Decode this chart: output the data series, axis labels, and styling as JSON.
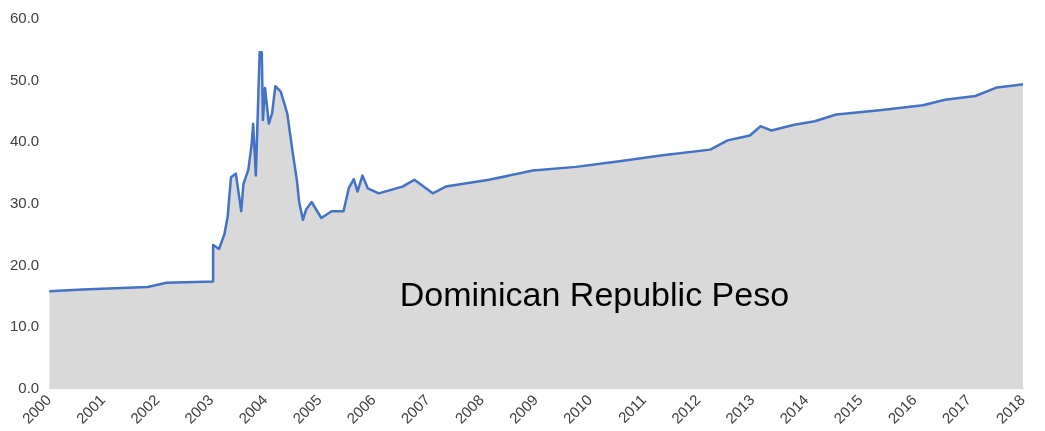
{
  "chart_data": {
    "type": "area",
    "title": "Dominican Republic Peso",
    "x": [
      2000,
      2000.62,
      2001.82,
      2002.17,
      2003.03,
      2003.03,
      2003.14,
      2003.24,
      2003.3,
      2003.36,
      2003.45,
      2003.55,
      2003.59,
      2003.68,
      2003.74,
      2003.77,
      2003.82,
      2003.89,
      2003.93,
      2003.95,
      2003.99,
      2004.06,
      2004.12,
      2004.18,
      2004.28,
      2004.4,
      2004.5,
      2004.58,
      2004.62,
      2004.69,
      2004.75,
      2004.85,
      2005.03,
      2005.22,
      2005.44,
      2005.54,
      2005.63,
      2005.7,
      2005.79,
      2005.89,
      2006.09,
      2006.53,
      2006.75,
      2007.09,
      2007.33,
      2008.13,
      2008.94,
      2009.74,
      2010.54,
      2011.34,
      2012.22,
      2012.54,
      2012.95,
      2013.15,
      2013.35,
      2013.75,
      2014.15,
      2014.55,
      2015.35,
      2016.15,
      2016.56,
      2017.12,
      2017.52,
      2018
    ],
    "series": [
      {
        "color": "#4472c4",
        "values": [
          15.8,
          16.1,
          16.5,
          17.2,
          17.4,
          23.3,
          22.7,
          25.1,
          28,
          34.3,
          34.9,
          28.8,
          33.2,
          35.5,
          39.5,
          43,
          34.6,
          54.6,
          54.6,
          43.6,
          48.8,
          43,
          44.7,
          49.1,
          48.2,
          44.7,
          38.4,
          33.7,
          30.3,
          27.4,
          29.1,
          30.3,
          27.7,
          28.8,
          28.8,
          32.6,
          34,
          32,
          34.6,
          32.5,
          31.7,
          32.8,
          33.9,
          31.7,
          32.8,
          33.9,
          35.4,
          36,
          36.9,
          37.9,
          38.8,
          40.3,
          41.1,
          42.6,
          41.9,
          42.8,
          43.4,
          44.5,
          45.2,
          46,
          46.9,
          47.5,
          48.9,
          49.4
        ]
      }
    ],
    "xlim": [
      2000,
      2018
    ],
    "xticks": [
      2000,
      2001,
      2002,
      2003,
      2004,
      2005,
      2006,
      2007,
      2008,
      2009,
      2010,
      2011,
      2012,
      2013,
      2014,
      2015,
      2016,
      2017,
      2018
    ],
    "ylim": [
      0,
      60
    ],
    "yticks": [
      {
        "value": 0,
        "label": "0.0"
      },
      {
        "value": 10,
        "label": "10.0"
      },
      {
        "value": 20,
        "label": "20.0"
      },
      {
        "value": 30,
        "label": "30.0"
      },
      {
        "value": 40,
        "label": "40.0"
      },
      {
        "value": 50,
        "label": "50.0"
      },
      {
        "value": 60,
        "label": "60.0"
      }
    ],
    "grid": false,
    "legend": false,
    "marker": "none",
    "line_style": "solid"
  }
}
